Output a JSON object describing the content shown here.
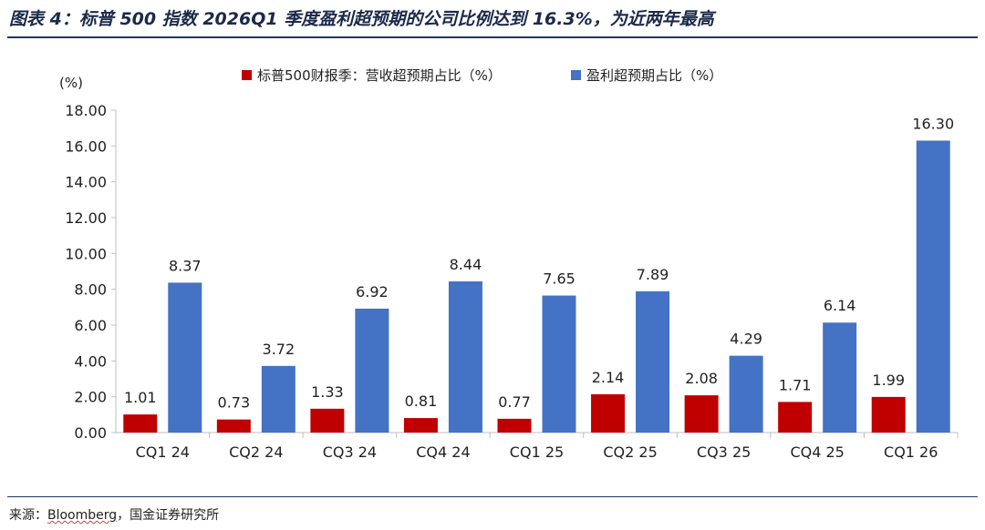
{
  "figure": {
    "title": "图表 4：标普 500 指数 2026Q1 季度盈利超预期的公司比例达到 16.3%，为近两年最高",
    "source_label": "来源：",
    "source_name": "Bloomberg",
    "source_rest": "，国金证券研究所"
  },
  "colors": {
    "series_1": "#c00000",
    "series_2": "#4472c4",
    "rule": "#1f3864",
    "axis": "#bfbfbf"
  },
  "chart_data": {
    "type": "bar",
    "unit_label": "(%)",
    "categories": [
      "CQ1 24",
      "CQ2 24",
      "CQ3 24",
      "CQ4 24",
      "CQ1 25",
      "CQ2 25",
      "CQ3 25",
      "CQ4 25",
      "CQ1 26"
    ],
    "series": [
      {
        "name": "标普500财报季：营收超预期占比（%）",
        "values": [
          1.01,
          0.73,
          1.33,
          0.81,
          0.77,
          2.14,
          2.08,
          1.71,
          1.99
        ]
      },
      {
        "name": "盈利超预期占比（%）",
        "values": [
          8.37,
          3.72,
          6.92,
          8.44,
          7.65,
          7.89,
          4.29,
          6.14,
          16.3
        ]
      }
    ],
    "ylim": [
      0,
      18
    ],
    "yticks": [
      "0.00",
      "2.00",
      "4.00",
      "6.00",
      "8.00",
      "10.00",
      "12.00",
      "14.00",
      "16.00",
      "18.00"
    ],
    "grid": false,
    "legend_position": "top-center"
  }
}
